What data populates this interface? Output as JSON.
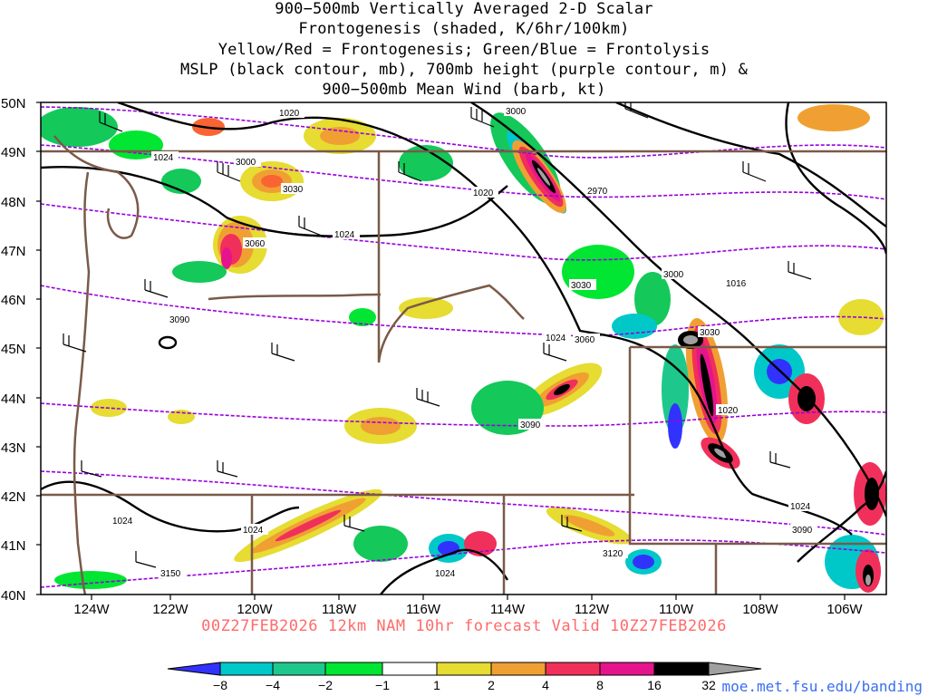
{
  "title": {
    "line1": "900−500mb Vertically Averaged 2-D Scalar",
    "line2": "Frontogenesis (shaded, K/6hr/100km)",
    "line3": "Yellow/Red = Frontogenesis;  Green/Blue = Frontolysis",
    "line4": "MSLP (black contour, mb), 700mb height (purple contour, m) &",
    "line5": "900−500mb Mean Wind (barb, kt)"
  },
  "axes": {
    "lat_labels": [
      "50N",
      "49N",
      "48N",
      "47N",
      "46N",
      "45N",
      "44N",
      "43N",
      "42N",
      "41N",
      "40N"
    ],
    "lon_labels": [
      "124W",
      "122W",
      "120W",
      "118W",
      "116W",
      "114W",
      "112W",
      "110W",
      "108W",
      "106W"
    ]
  },
  "contour_labels": {
    "mslp": [
      "1020",
      "1024",
      "1020",
      "1024",
      "1024",
      "1016",
      "1020",
      "1024",
      "1024",
      "1024",
      "1024"
    ],
    "height": [
      "3000",
      "3030",
      "3060",
      "3090",
      "3000",
      "2970",
      "3030",
      "3060",
      "3030",
      "3090",
      "3000",
      "3090",
      "3120",
      "3150"
    ]
  },
  "colorbar": {
    "labels": [
      "−8",
      "−4",
      "−2",
      "−1",
      "1",
      "2",
      "4",
      "8",
      "16",
      "32"
    ],
    "colors": [
      "#3232ff",
      "#00c8c8",
      "#1ec88c",
      "#14c85a",
      "#00e632",
      "#ffffff",
      "#e6dc32",
      "#f0a032",
      "#fa6432",
      "#f0305a",
      "#e6148c",
      "#000000",
      "#a0a0a0"
    ]
  },
  "valid_text": "00Z27FEB2026 12km NAM 10hr forecast Valid 10Z27FEB2026",
  "credit": "moe.met.fsu.edu/banding"
}
